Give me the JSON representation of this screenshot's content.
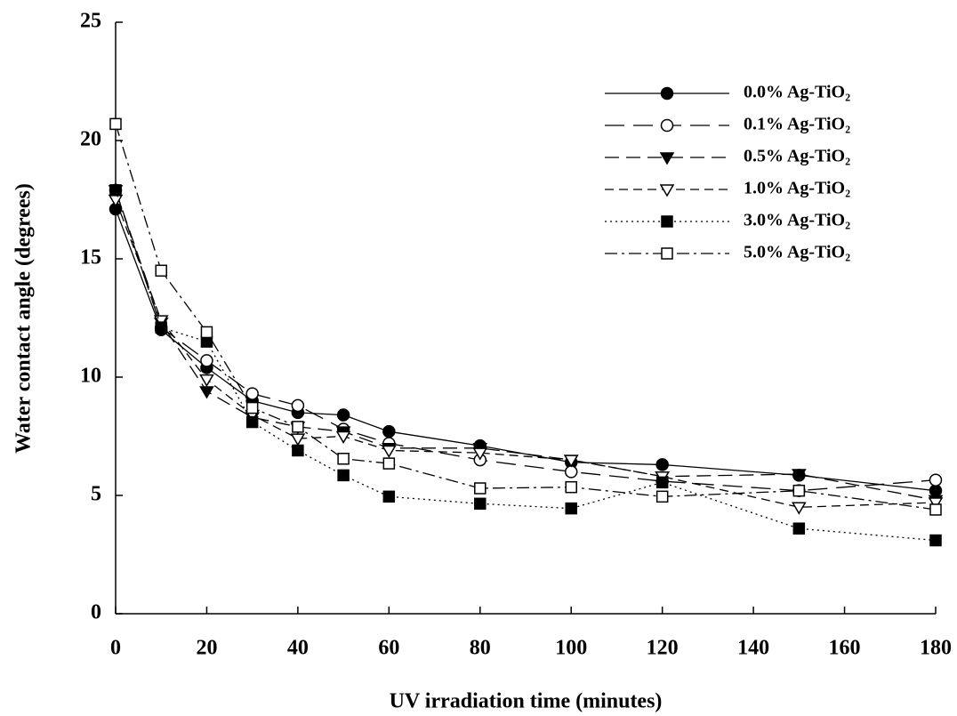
{
  "chart_data": {
    "type": "line",
    "xlabel": "UV irradiation time (minutes)",
    "ylabel": "Water contact angle (degrees)",
    "x": [
      0,
      10,
      20,
      30,
      40,
      50,
      60,
      80,
      100,
      120,
      150,
      180
    ],
    "xlim": [
      0,
      180
    ],
    "xticks": [
      0,
      20,
      40,
      60,
      80,
      100,
      120,
      140,
      160,
      180
    ],
    "ylim": [
      0,
      25
    ],
    "yticks": [
      0,
      5,
      10,
      15,
      20,
      25
    ],
    "legend": "upper right",
    "series": [
      {
        "name": "0.0% Ag-TiO₂",
        "color": "#000000",
        "marker": "circle",
        "filled": true,
        "dash": "solid",
        "values": [
          17.1,
          12.0,
          10.4,
          9.0,
          8.5,
          8.4,
          7.7,
          7.1,
          6.4,
          6.3,
          5.85,
          5.2
        ]
      },
      {
        "name": "0.1% Ag-TiO₂",
        "color": "#000000",
        "marker": "circle",
        "filled": false,
        "dash": "longdash",
        "values": [
          17.9,
          12.1,
          10.7,
          9.3,
          8.8,
          7.8,
          7.2,
          6.5,
          6.0,
          5.6,
          5.2,
          5.65
        ]
      },
      {
        "name": "0.5% Ag-TiO₂",
        "color": "#000000",
        "marker": "triangle-down",
        "filled": true,
        "dash": "dash",
        "values": [
          17.9,
          12.3,
          9.4,
          8.3,
          7.9,
          7.7,
          7.0,
          7.0,
          6.5,
          5.8,
          5.9,
          4.8
        ]
      },
      {
        "name": "1.0% Ag-TiO₂",
        "color": "#000000",
        "marker": "triangle-down",
        "filled": false,
        "dash": "shortdash",
        "values": [
          17.5,
          12.4,
          9.9,
          8.4,
          7.4,
          7.5,
          6.9,
          6.8,
          6.5,
          5.8,
          4.5,
          4.7
        ]
      },
      {
        "name": "3.0% Ag-TiO₂",
        "color": "#000000",
        "marker": "square",
        "filled": true,
        "dash": "dot",
        "values": [
          17.9,
          12.1,
          11.5,
          8.1,
          6.9,
          5.85,
          4.95,
          4.65,
          4.45,
          5.55,
          3.6,
          3.1
        ]
      },
      {
        "name": "5.0% Ag-TiO₂",
        "color": "#000000",
        "marker": "square",
        "filled": false,
        "dash": "dashdot",
        "values": [
          20.7,
          14.5,
          11.9,
          8.7,
          7.9,
          6.55,
          6.35,
          5.3,
          5.35,
          4.95,
          5.2,
          4.4
        ]
      }
    ]
  }
}
